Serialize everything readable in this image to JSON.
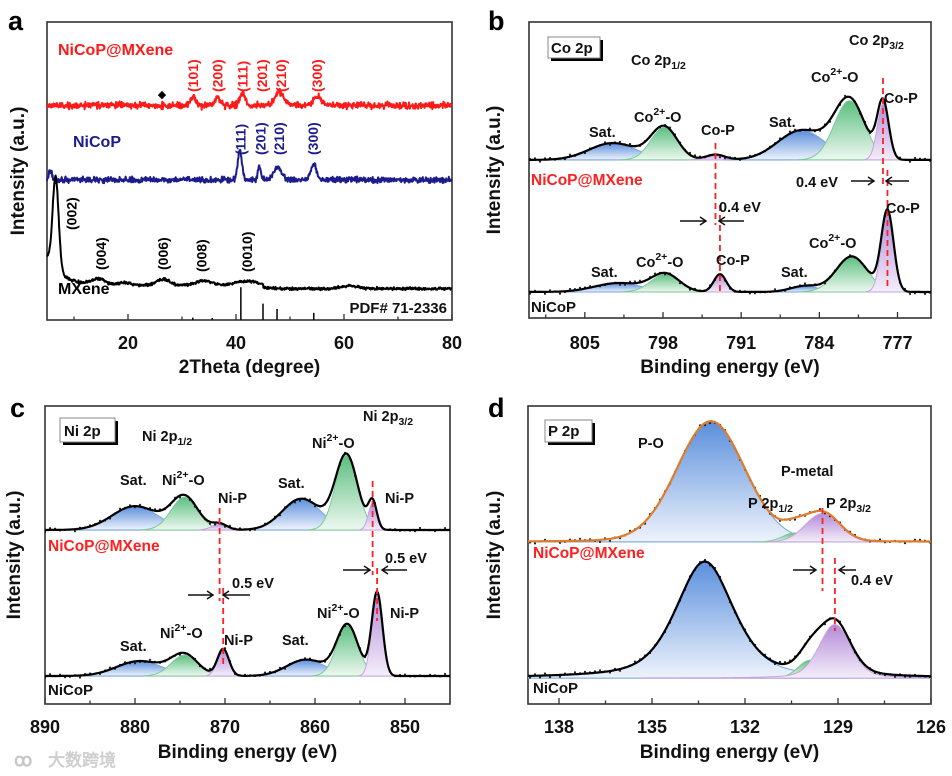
{
  "figure": {
    "watermark": "大数跨境"
  },
  "chart_data": [
    {
      "panel": "a",
      "type": "line",
      "title": "",
      "xlabel": "2Theta (degree)",
      "ylabel": "Intensity (a.u.)",
      "xlim": [
        5,
        80
      ],
      "ylim": [
        0,
        100
      ],
      "xticks": [
        20,
        40,
        60,
        80
      ],
      "minor_xticks": [
        10,
        30,
        50,
        70
      ],
      "grid": false,
      "series": [
        {
          "name": "NiCoP@MXene",
          "color": "#ff1a1a",
          "baseline": 72,
          "noise": 1.1,
          "peaks": [
            {
              "x": 32,
              "h": 3,
              "fwhm": 1.2
            },
            {
              "x": 36.6,
              "h": 2.5,
              "fwhm": 1.2
            },
            {
              "x": 41.2,
              "h": 4,
              "fwhm": 1.2
            },
            {
              "x": 48,
              "h": 4.5,
              "fwhm": 1.8
            },
            {
              "x": 55,
              "h": 3,
              "fwhm": 1.8
            }
          ],
          "labels": [
            {
              "text": "(101)",
              "x": 32
            },
            {
              "text": "(200)",
              "x": 36.6
            },
            {
              "text": "(111)",
              "x": 41.2
            },
            {
              "text": "(201)",
              "x": 44.8
            },
            {
              "text": "(210)",
              "x": 48.3
            },
            {
              "text": "(300)",
              "x": 55
            }
          ],
          "marker": {
            "symbol": "◆",
            "x": 26.3
          }
        },
        {
          "name": "NiCoP",
          "color": "#1c1c8c",
          "baseline": 47,
          "noise": 0.9,
          "peaks": [
            {
              "x": 40.7,
              "h": 10,
              "fwhm": 0.9
            },
            {
              "x": 44.3,
              "h": 5,
              "fwhm": 0.6
            },
            {
              "x": 47.7,
              "h": 4.5,
              "fwhm": 1.6
            },
            {
              "x": 54.4,
              "h": 5.5,
              "fwhm": 1.2
            },
            {
              "x": 5.6,
              "h": 3,
              "fwhm": 0.8
            }
          ],
          "labels": [
            {
              "text": "(111)",
              "x": 40.8
            },
            {
              "text": "(201)",
              "x": 44.5
            },
            {
              "text": "(210)",
              "x": 48
            },
            {
              "text": "(300)",
              "x": 54.3
            }
          ]
        },
        {
          "name": "MXene",
          "color": "#000000",
          "baseline": 11.5,
          "noise": 0.45,
          "peaks": [
            {
              "x": 6.6,
              "h": 31,
              "fwhm": 1.3
            },
            {
              "x": 14.6,
              "h": 2,
              "fwhm": 3
            },
            {
              "x": 19.5,
              "h": 1,
              "fwhm": 3
            },
            {
              "x": 26.5,
              "h": 2.2,
              "fwhm": 3
            },
            {
              "x": 34,
              "h": 1.6,
              "fwhm": 4
            },
            {
              "x": 42,
              "h": 1.6,
              "fwhm": 5
            },
            {
              "x": 61,
              "h": 0.9,
              "fwhm": 4
            }
          ],
          "tail": {
            "start": 5,
            "amp": 10,
            "decay": 2.8
          },
          "labels": [
            {
              "text": "(002)",
              "x": 9.5
            },
            {
              "text": "(004)",
              "x": 15
            },
            {
              "text": "(006)",
              "x": 26.5
            },
            {
              "text": "(008)",
              "x": 33.6
            },
            {
              "text": "(0010)",
              "x": 42
            }
          ]
        }
      ],
      "reference": {
        "name": "PDF# 71-2336",
        "sticks": [
          [
            32,
            0.8
          ],
          [
            35.6,
            0.7
          ],
          [
            40.9,
            11
          ],
          [
            45,
            5.5
          ],
          [
            47.6,
            3.7
          ],
          [
            54.4,
            2.4
          ]
        ]
      }
    },
    {
      "panel": "b",
      "type": "line",
      "title": "",
      "xlabel": "Binding energy (eV)",
      "ylabel": "Intensity (a.u.)",
      "xlim": [
        810,
        774
      ],
      "ylim": [
        0,
        100
      ],
      "xticks": [
        805,
        798,
        791,
        784,
        777
      ],
      "minor_xticks": [
        808.5,
        801.5,
        794.5,
        787.5,
        780.5
      ],
      "grid": false,
      "element_label": "Co 2p",
      "sample_labels": {
        "top": "NiCoP@MXene",
        "bottom": "NiCoP"
      },
      "spectra": [
        {
          "name": "NiCoP@MXene",
          "baseline": 53.4,
          "fit_color": "#000000",
          "components": [
            {
              "label": "Sat.",
              "x": 802.5,
              "h": 5.7,
              "fwhm": 5,
              "color": "blue"
            },
            {
              "label": "Co2+-O",
              "x": 797.9,
              "h": 11,
              "fwhm": 2.8,
              "color": "green"
            },
            {
              "label": "Co-P",
              "x": 793.3,
              "h": 1.8,
              "fwhm": 2,
              "color": "purple"
            },
            {
              "label": "Sat.",
              "x": 785.6,
              "h": 10,
              "fwhm": 5,
              "color": "blue"
            },
            {
              "label": "Co2+-O",
              "x": 781.3,
              "h": 20,
              "fwhm": 3.2,
              "color": "green"
            },
            {
              "label": "Co-P",
              "x": 778.3,
              "h": 19,
              "fwhm": 1.2,
              "color": "purple"
            }
          ]
        },
        {
          "name": "NiCoP",
          "baseline": 8.8,
          "fit_color": "#000000",
          "components": [
            {
              "label": "Sat.",
              "x": 802,
              "h": 3,
              "fwhm": 5,
              "color": "blue"
            },
            {
              "label": "Co2+-O",
              "x": 797.8,
              "h": 6,
              "fwhm": 3,
              "color": "green"
            },
            {
              "label": "Co-P",
              "x": 792.9,
              "h": 6,
              "fwhm": 1.3,
              "color": "purple"
            },
            {
              "label": "Sat.",
              "x": 785.3,
              "h": 2,
              "fwhm": 3,
              "color": "blue"
            },
            {
              "label": "Co2+-O",
              "x": 781.1,
              "h": 12,
              "fwhm": 3.3,
              "color": "green"
            },
            {
              "label": "Co-P",
              "x": 777.9,
              "h": 27,
              "fwhm": 1.3,
              "color": "purple"
            }
          ]
        }
      ],
      "shift_lines": [
        {
          "top_x": 793.3,
          "bottom_x": 792.9
        },
        {
          "top_x": 778.3,
          "bottom_x": 777.9
        }
      ],
      "annotations": [
        {
          "parts": [
            {
              "t": "Co 2p"
            },
            {
              "t": "1/2",
              "s": "sub"
            }
          ]
        },
        {
          "parts": [
            {
              "t": "Co 2p"
            },
            {
              "t": "3/2",
              "s": "sub"
            }
          ]
        },
        {
          "parts": [
            {
              "t": "Sat."
            }
          ]
        },
        {
          "parts": [
            {
              "t": "Co"
            },
            {
              "t": "2+",
              "s": "sup"
            },
            {
              "t": "-O"
            }
          ]
        },
        {
          "parts": [
            {
              "t": "Co-P"
            }
          ]
        },
        {
          "parts": [
            {
              "t": "Sat."
            }
          ]
        },
        {
          "parts": [
            {
              "t": "Co"
            },
            {
              "t": "2+",
              "s": "sup"
            },
            {
              "t": "-O"
            }
          ]
        },
        {
          "parts": [
            {
              "t": "Co-P"
            }
          ]
        },
        {
          "parts": [
            {
              "t": "Sat."
            }
          ]
        },
        {
          "parts": [
            {
              "t": "Co"
            },
            {
              "t": "2+",
              "s": "sup"
            },
            {
              "t": "-O"
            }
          ]
        },
        {
          "parts": [
            {
              "t": "Co-P"
            }
          ]
        },
        {
          "parts": [
            {
              "t": "Sat."
            }
          ]
        },
        {
          "parts": [
            {
              "t": "Co"
            },
            {
              "t": "2+",
              "s": "sup"
            },
            {
              "t": "-O"
            }
          ]
        },
        {
          "parts": [
            {
              "t": "Co-P"
            }
          ]
        }
      ],
      "shifts": [
        {
          "text": "0.4 eV",
          "value_eV": 0.4
        },
        {
          "text": "0.4 eV",
          "value_eV": 0.4
        }
      ]
    },
    {
      "panel": "c",
      "type": "line",
      "title": "",
      "xlabel": "Binding energy (eV)",
      "ylabel": "Intensity (a.u.)",
      "xlim": [
        890,
        845
      ],
      "ylim": [
        0,
        100
      ],
      "xticks": [
        890,
        880,
        870,
        860,
        850
      ],
      "minor_xticks": [
        885,
        875,
        865,
        855
      ],
      "grid": false,
      "element_label": "Ni 2p",
      "sample_labels": {
        "top": "NiCoP@MXene",
        "bottom": "NiCoP"
      },
      "spectra": [
        {
          "name": "NiCoP@MXene",
          "baseline": 58.4,
          "fit_color": "#000000",
          "components": [
            {
              "label": "Sat.",
              "x": 880,
              "h": 8,
              "fwhm": 6,
              "color": "blue"
            },
            {
              "label": "Ni2+-O",
              "x": 874.5,
              "h": 11,
              "fwhm": 3.5,
              "color": "green"
            },
            {
              "label": "Ni-P",
              "x": 870.6,
              "h": 2,
              "fwhm": 2,
              "color": "purple"
            },
            {
              "label": "Sat.",
              "x": 861.5,
              "h": 10.5,
              "fwhm": 5,
              "color": "blue"
            },
            {
              "label": "Ni2+-O",
              "x": 856.5,
              "h": 25,
              "fwhm": 2.9,
              "color": "green"
            },
            {
              "label": "Ni-P",
              "x": 853.6,
              "h": 9,
              "fwhm": 1.1,
              "color": "purple"
            }
          ]
        },
        {
          "name": "NiCoP",
          "baseline": 9.4,
          "fit_color": "#000000",
          "components": [
            {
              "label": "Sat.",
              "x": 879.5,
              "h": 5,
              "fwhm": 6,
              "color": "blue"
            },
            {
              "label": "Ni2+-O",
              "x": 874.5,
              "h": 7,
              "fwhm": 3.5,
              "color": "green"
            },
            {
              "label": "Ni-P",
              "x": 870.2,
              "h": 9,
              "fwhm": 1.5,
              "color": "purple"
            },
            {
              "label": "Sat.",
              "x": 861,
              "h": 5.5,
              "fwhm": 5,
              "color": "blue"
            },
            {
              "label": "Ni2+-O",
              "x": 856.4,
              "h": 17,
              "fwhm": 2.8,
              "color": "green"
            },
            {
              "label": "Ni-P",
              "x": 853.1,
              "h": 28,
              "fwhm": 1.4,
              "color": "purple"
            }
          ]
        }
      ],
      "shift_lines": [
        {
          "top_x": 870.6,
          "bottom_x": 870.2
        },
        {
          "top_x": 853.6,
          "bottom_x": 853.1
        }
      ],
      "annotations": [
        {
          "parts": [
            {
              "t": "Ni 2p"
            },
            {
              "t": "1/2",
              "s": "sub"
            }
          ]
        },
        {
          "parts": [
            {
              "t": "Ni 2p"
            },
            {
              "t": "3/2",
              "s": "sub"
            }
          ]
        },
        {
          "parts": [
            {
              "t": "Sat."
            }
          ]
        },
        {
          "parts": [
            {
              "t": "Ni"
            },
            {
              "t": "2+",
              "s": "sup"
            },
            {
              "t": "-O"
            }
          ]
        },
        {
          "parts": [
            {
              "t": "Ni-P"
            }
          ]
        },
        {
          "parts": [
            {
              "t": "Sat."
            }
          ]
        },
        {
          "parts": [
            {
              "t": "Ni"
            },
            {
              "t": "2+",
              "s": "sup"
            },
            {
              "t": "-O"
            }
          ]
        },
        {
          "parts": [
            {
              "t": "Ni-P"
            }
          ]
        },
        {
          "parts": [
            {
              "t": "Sat."
            }
          ]
        },
        {
          "parts": [
            {
              "t": "Ni"
            },
            {
              "t": "2+",
              "s": "sup"
            },
            {
              "t": "-O"
            }
          ]
        },
        {
          "parts": [
            {
              "t": "Ni-P"
            }
          ]
        },
        {
          "parts": [
            {
              "t": "Sat."
            }
          ]
        },
        {
          "parts": [
            {
              "t": "Ni"
            },
            {
              "t": "2+",
              "s": "sup"
            },
            {
              "t": "-O"
            }
          ]
        },
        {
          "parts": [
            {
              "t": "Ni-P"
            }
          ]
        }
      ],
      "shifts": [
        {
          "text": "0.5 eV",
          "value_eV": 0.5
        },
        {
          "text": "0.5 eV",
          "value_eV": 0.5
        }
      ]
    },
    {
      "panel": "d",
      "type": "line",
      "title": "",
      "xlabel": "Binding energy (eV)",
      "ylabel": "Intensity (a.u.)",
      "xlim": [
        139,
        126
      ],
      "ylim": [
        0,
        100
      ],
      "xticks": [
        138,
        135,
        132,
        129,
        126
      ],
      "minor_xticks": [
        136.5,
        133.5,
        130.5,
        127.5
      ],
      "grid": false,
      "element_label": "P 2p",
      "sample_labels": {
        "top": "NiCoP@MXene",
        "bottom": "NiCoP"
      },
      "spectra": [
        {
          "name": "NiCoP@MXene",
          "baseline": 54.4,
          "fit_color": "#e07b2a",
          "components": [
            {
              "label": "P-O",
              "x": 133.1,
              "h": 40.5,
              "fwhm": 2.6,
              "color": "blue",
              "eta": 0.1
            },
            {
              "label": "P 2p1/2",
              "x": 130.4,
              "h": 3,
              "fwhm": 0.9,
              "color": "green"
            },
            {
              "label": "P 2p3/2",
              "x": 129.5,
              "h": 9.5,
              "fwhm": 1.3,
              "color": "purple"
            }
          ]
        },
        {
          "name": "NiCoP",
          "baseline": 8.7,
          "fit_color": "#000000",
          "components": [
            {
              "label": "P-O",
              "x": 133.3,
              "h": 39,
              "fwhm": 2.2,
              "color": "blue",
              "eta": 0.5
            },
            {
              "label": "P 2p1/2",
              "x": 129.9,
              "h": 6,
              "fwhm": 0.9,
              "color": "green"
            },
            {
              "label": "P 2p3/2",
              "x": 129.1,
              "h": 18,
              "fwhm": 1.2,
              "color": "purple",
              "eta": 0.3
            }
          ]
        }
      ],
      "shift_lines": [
        {
          "top_x": 129.5,
          "bottom_x": 129.1
        }
      ],
      "annotations": [
        {
          "parts": [
            {
              "t": "P-O"
            }
          ]
        },
        {
          "parts": [
            {
              "t": "P-metal"
            }
          ]
        },
        {
          "parts": [
            {
              "t": "P 2p"
            },
            {
              "t": "1/2",
              "s": "sub"
            }
          ]
        },
        {
          "parts": [
            {
              "t": "P 2p"
            },
            {
              "t": "3/2",
              "s": "sub"
            }
          ]
        }
      ],
      "shifts": [
        {
          "text": "0.4 eV",
          "value_eV": 0.4
        }
      ]
    }
  ]
}
